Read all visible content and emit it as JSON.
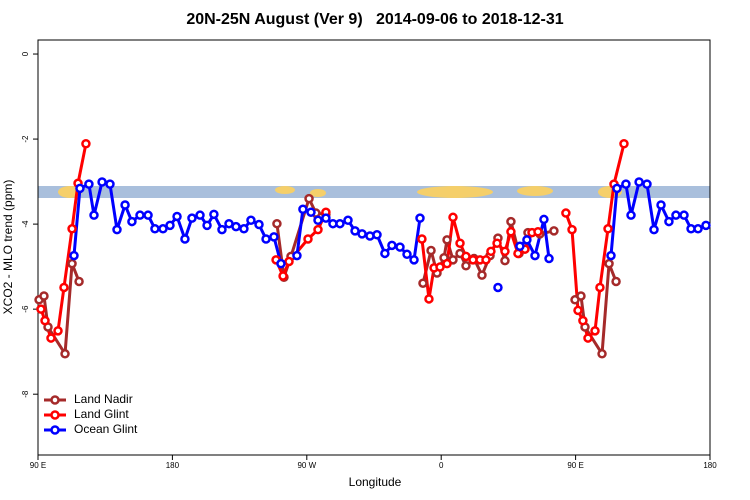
{
  "chart_data": {
    "type": "line",
    "title": "20N-25N August (Ver 9)   2014-09-06 to 2018-12-31",
    "x_label": "Longitude",
    "y_label": "XCO2 - MLO trend (ppm)",
    "xlim": [
      90,
      540
    ],
    "ylim": [
      -9.43,
      0.33
    ],
    "xticks": [
      {
        "value": 90,
        "label": "90 E"
      },
      180,
      {
        "value": 270,
        "label": "90 W"
      },
      {
        "value": 360,
        "label": "0"
      },
      {
        "value": 450,
        "label": "90 E"
      },
      {
        "value": 540,
        "label": "180"
      }
    ],
    "yticks": [
      0,
      -2,
      -4,
      -6,
      -8
    ],
    "legend": "bottom-left",
    "series": [
      {
        "name": "Land Nadir",
        "color": "#a52a2a",
        "x": [
          90.7,
          94.0,
          96.7,
          108.1,
          112.8,
          117.5,
          null,
          250.0,
          254.7,
          259.4,
          271.5,
          276.1,
          282.8,
          null,
          347.8,
          353.2,
          357.2,
          361.9,
          363.9,
          367.9,
          372.6,
          376.6,
          382.0,
          387.3,
          392.7,
          398.0,
          402.7,
          406.7,
          412.1,
          418.1,
          426.1,
          435.5,
          null,
          449.6,
          453.6,
          456.3,
          467.7,
          472.4,
          477.1
        ],
        "values": [
          -5.78,
          -5.69,
          -6.42,
          -7.05,
          -4.93,
          -5.35,
          null,
          -3.99,
          -5.25,
          -4.76,
          -3.4,
          -3.74,
          -3.77,
          null,
          -5.39,
          -4.62,
          -5.15,
          -4.79,
          -4.37,
          -4.84,
          -4.69,
          -4.98,
          -4.81,
          -5.2,
          -4.74,
          -4.33,
          -4.86,
          -3.94,
          -4.69,
          -4.2,
          -4.23,
          -4.16,
          null,
          -5.78,
          -5.69,
          -6.42,
          -7.05,
          -4.93,
          -5.35
        ]
      },
      {
        "name": "Land Glint",
        "color": "#ff0000",
        "x": [
          92.0,
          94.7,
          98.7,
          103.4,
          107.4,
          112.8,
          116.8,
          122.1,
          null,
          249.4,
          254.1,
          258.1,
          270.8,
          277.5,
          282.8,
          null,
          347.1,
          351.8,
          355.2,
          359.2,
          363.9,
          367.9,
          372.6,
          376.6,
          381.3,
          386.0,
          390.0,
          393.3,
          397.4,
          402.7,
          406.7,
          411.4,
          416.1,
          420.8,
          424.8,
          null,
          443.5,
          447.6,
          451.6,
          454.9,
          458.3,
          463.0,
          466.3,
          471.7,
          475.7,
          482.4
        ],
        "values": [
          -6.0,
          -6.27,
          -6.68,
          -6.51,
          -5.49,
          -4.11,
          -3.04,
          -2.11,
          null,
          -4.84,
          -5.22,
          -4.88,
          -4.35,
          -4.13,
          -3.72,
          null,
          -4.35,
          -5.76,
          -5.03,
          -5.01,
          -4.93,
          -3.84,
          -4.45,
          -4.76,
          -4.84,
          -4.84,
          -4.84,
          -4.64,
          -4.45,
          -4.64,
          -4.18,
          -4.69,
          -4.59,
          -4.2,
          -4.18,
          null,
          -3.74,
          -4.13,
          -6.03,
          -6.27,
          -6.68,
          -6.51,
          -5.49,
          -4.11,
          -3.06,
          -2.11
        ]
      },
      {
        "name": "Ocean Glint",
        "color": "#0000ff",
        "x": [
          114.1,
          118.1,
          124.1,
          127.5,
          132.9,
          138.2,
          142.9,
          148.3,
          152.9,
          158.3,
          163.7,
          168.3,
          173.7,
          178.4,
          183.1,
          188.4,
          193.1,
          198.5,
          203.2,
          207.8,
          213.2,
          217.9,
          222.6,
          227.9,
          232.6,
          238.0,
          242.7,
          248.0,
          252.7,
          263.4,
          267.4,
          272.8,
          277.5,
          282.8,
          287.5,
          292.2,
          297.6,
          302.3,
          307.0,
          312.3,
          317.0,
          322.3,
          327.0,
          332.4,
          337.1,
          341.8,
          345.8,
          null,
          398.0,
          null,
          412.7,
          417.4,
          422.8,
          428.8,
          432.2,
          null,
          473.7,
          477.7,
          483.7,
          487.1,
          492.5,
          497.8,
          502.5,
          507.2,
          512.5,
          517.2,
          522.6,
          527.3,
          532.0,
          537.3
        ],
        "values": [
          -4.74,
          -3.16,
          -3.06,
          -3.79,
          -3.01,
          -3.06,
          -4.13,
          -3.55,
          -3.94,
          -3.79,
          -3.79,
          -4.11,
          -4.11,
          -4.03,
          -3.82,
          -4.35,
          -3.86,
          -3.79,
          -4.03,
          -3.77,
          -4.13,
          -3.99,
          -4.06,
          -4.11,
          -3.91,
          -4.01,
          -4.35,
          -4.3,
          -4.93,
          -4.74,
          -3.65,
          -3.72,
          -3.91,
          -3.86,
          -3.99,
          -3.99,
          -3.91,
          -4.16,
          -4.23,
          -4.28,
          -4.25,
          -4.69,
          -4.5,
          -4.54,
          -4.71,
          -4.84,
          -3.86,
          null,
          -5.49,
          null,
          -4.52,
          -4.37,
          -4.74,
          -3.89,
          -4.81,
          null,
          -4.74,
          -3.16,
          -3.06,
          -3.79,
          -3.01,
          -3.06,
          -4.13,
          -3.55,
          -3.94,
          -3.79,
          -3.79,
          -4.11,
          -4.11,
          -4.03
        ]
      }
    ]
  }
}
